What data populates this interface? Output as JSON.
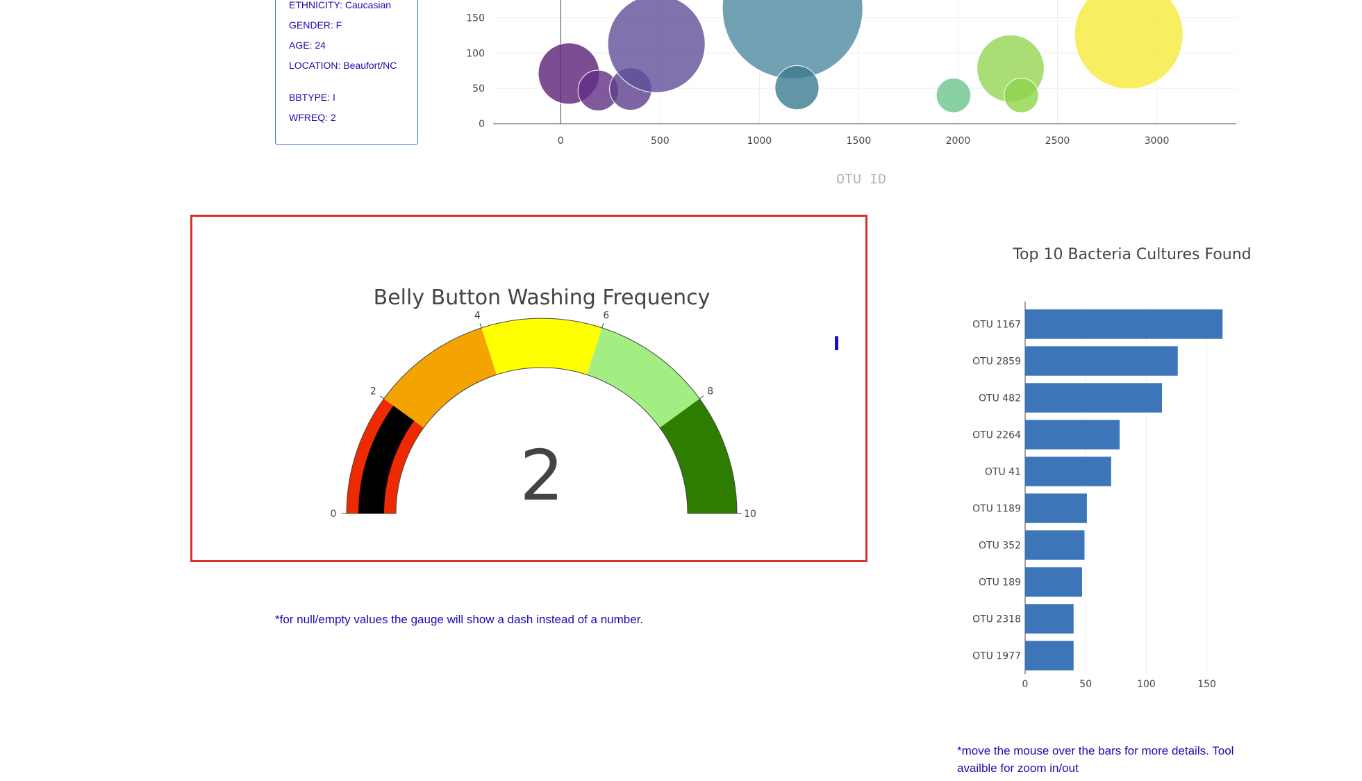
{
  "metadata": {
    "rows": [
      {
        "text": "ETHNICITY: Caucasian"
      },
      {
        "text": "GENDER: F"
      },
      {
        "text": "AGE: 24"
      },
      {
        "text": "LOCATION: Beaufort/NC"
      },
      {
        "text": "BBTYPE: I"
      },
      {
        "text": "WFREQ: 2"
      }
    ]
  },
  "notes": {
    "gauge": "*for null/empty values the gauge will show a dash instead of a number.",
    "bar": "*move the mouse over the bars for more details. Tool availble for zoom in/out"
  },
  "chart_data": [
    {
      "type": "scatter",
      "subtype": "bubble",
      "title": "",
      "xlabel": "OTU ID",
      "ylabel": "",
      "xlim": [
        -340,
        3400
      ],
      "ylim": [
        0,
        175
      ],
      "xticks": [
        0,
        500,
        1000,
        1500,
        2000,
        2500,
        3000
      ],
      "yticks": [
        0,
        50,
        100,
        150
      ],
      "points": [
        {
          "x": 41,
          "y": 71,
          "size": 71,
          "color": "#5c2176"
        },
        {
          "x": 189,
          "y": 47,
          "size": 47,
          "color": "#602f84"
        },
        {
          "x": 352,
          "y": 49,
          "size": 49,
          "color": "#5c3e8c"
        },
        {
          "x": 482,
          "y": 113,
          "size": 113,
          "color": "#5f4f99"
        },
        {
          "x": 1167,
          "y": 163,
          "size": 163,
          "color": "#4f8aa0"
        },
        {
          "x": 1189,
          "y": 51,
          "size": 51,
          "color": "#3d7a90"
        },
        {
          "x": 1977,
          "y": 40,
          "size": 40,
          "color": "#6cc48c"
        },
        {
          "x": 2264,
          "y": 78,
          "size": 78,
          "color": "#96d455"
        },
        {
          "x": 2318,
          "y": 40,
          "size": 40,
          "color": "#8fd44a"
        },
        {
          "x": 2859,
          "y": 126,
          "size": 126,
          "color": "#f6ea3a"
        }
      ]
    },
    {
      "type": "gauge",
      "title": "Belly Button Washing Frequency",
      "value": 2,
      "value_label": "2",
      "range": [
        0,
        10
      ],
      "ticks": [
        0,
        2,
        4,
        6,
        8,
        10
      ],
      "steps": [
        {
          "range": [
            0,
            2
          ],
          "color": "#ee2a00"
        },
        {
          "range": [
            2,
            4
          ],
          "color": "#f4a400"
        },
        {
          "range": [
            4,
            6
          ],
          "color": "#ffff00"
        },
        {
          "range": [
            6,
            8
          ],
          "color": "#a2ee83"
        },
        {
          "range": [
            8,
            10
          ],
          "color": "#2d7d00"
        }
      ],
      "bar_color": "#000000"
    },
    {
      "type": "bar",
      "orientation": "horizontal",
      "title": "Top 10 Bacteria Cultures Found",
      "categories": [
        "OTU 1167",
        "OTU 2859",
        "OTU 482",
        "OTU 2264",
        "OTU 41",
        "OTU 1189",
        "OTU 352",
        "OTU 189",
        "OTU 2318",
        "OTU 1977"
      ],
      "values": [
        163,
        126,
        113,
        78,
        71,
        51,
        49,
        47,
        40,
        40
      ],
      "xlim": [
        0,
        168
      ],
      "xticks": [
        0,
        50,
        100,
        150
      ],
      "color": "#3d76b8"
    }
  ]
}
